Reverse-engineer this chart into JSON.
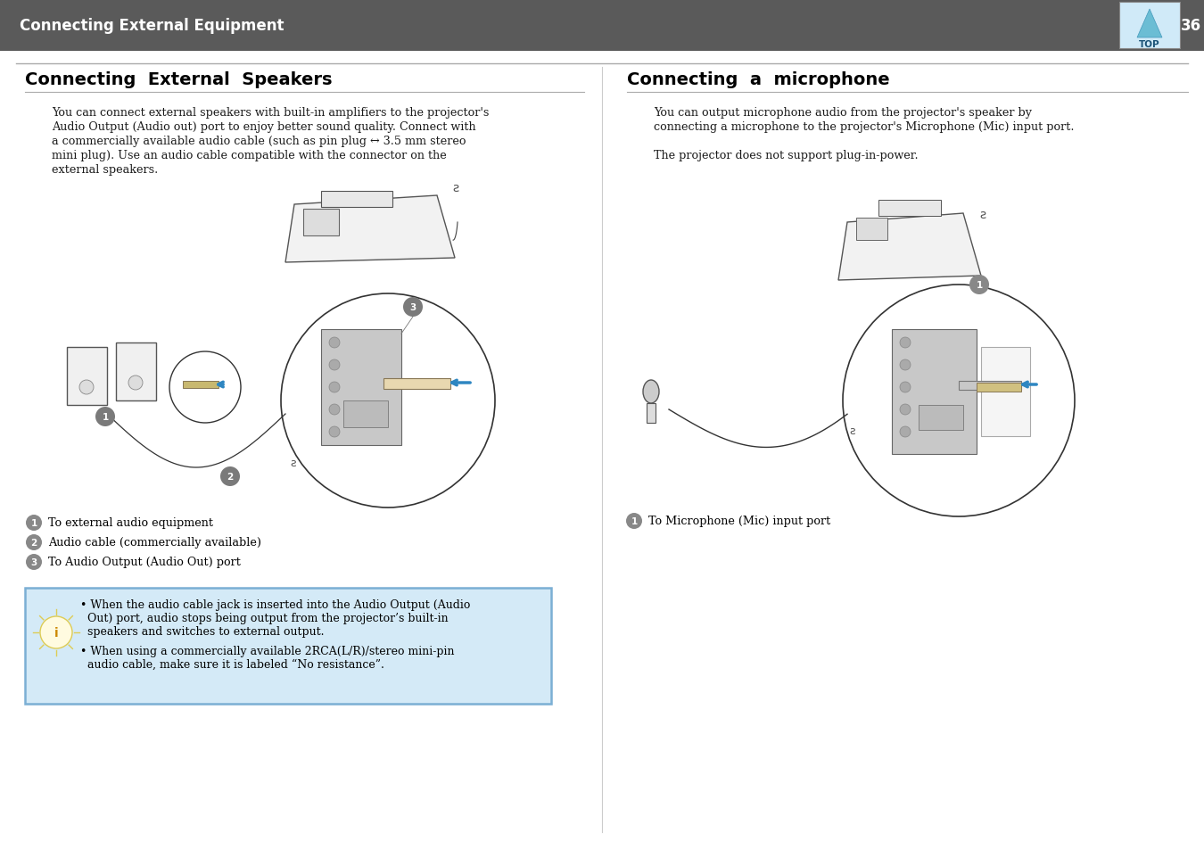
{
  "page_bg": "#ffffff",
  "header_bg": "#5a5a5a",
  "header_text": "Connecting External Equipment",
  "header_text_color": "#ffffff",
  "header_page_num": "36",
  "divider_color": "#aaaaaa",
  "left_title": "Connecting  External  Speakers",
  "right_title": "Connecting  a  microphone",
  "left_body_lines": [
    "You can connect external speakers with built-in amplifiers to the projector's",
    "Audio Output (Audio out) port to enjoy better sound quality. Connect with",
    "a commercially available audio cable (such as pin plug ↔ 3.5 mm stereo",
    "mini plug). Use an audio cable compatible with the connector on the",
    "external speakers."
  ],
  "right_body_lines": [
    "You can output microphone audio from the projector's speaker by",
    "connecting a microphone to the projector's Microphone (Mic) input port.",
    "",
    "The projector does not support plug-in-power."
  ],
  "label1_left": "To external audio equipment",
  "label2_left": "Audio cable (commercially available)",
  "label3_left": "To Audio Output (Audio Out) port",
  "label1_right": "To Microphone (Mic) input port",
  "note_bg": "#d4eaf7",
  "note_border": "#7bafd4",
  "note_line1a": "When the audio cable jack is inserted into the Audio Output (Audio",
  "note_line1b": "Out) port, audio stops being output from the projector’s built-in",
  "note_line1c": "speakers and switches to external output.",
  "note_line2a": "When using a commercially available 2RCA(L/R)/stereo mini-pin",
  "note_line2b": "audio cable, make sure it is labeled “No resistance”.",
  "body_fontsize": 9.2,
  "title_fontsize": 14,
  "label_fontsize": 9.2,
  "note_fontsize": 9.0,
  "header_fontsize": 12
}
